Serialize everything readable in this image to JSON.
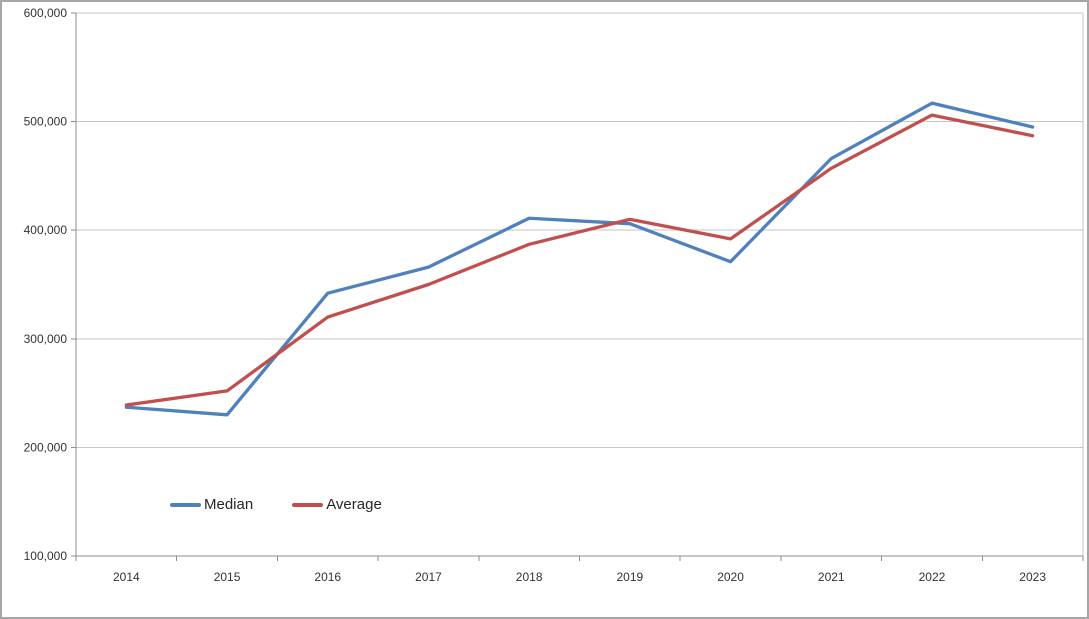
{
  "chart_data": {
    "type": "line",
    "title": "",
    "xlabel": "",
    "ylabel": "",
    "x": [
      "2014",
      "2015",
      "2016",
      "2017",
      "2018",
      "2019",
      "2020",
      "2021",
      "2022",
      "2023"
    ],
    "series": [
      {
        "name": "Median",
        "color": "#4F81BD",
        "values": [
          237000,
          230000,
          342000,
          366000,
          411000,
          406000,
          371000,
          466000,
          517000,
          495000
        ]
      },
      {
        "name": "Average",
        "color": "#C0504D",
        "values": [
          239000,
          252000,
          320000,
          350000,
          387000,
          410000,
          392000,
          457000,
          506000,
          487000
        ]
      }
    ],
    "ylim": [
      100000,
      600000
    ],
    "ytick_interval": 100000,
    "ytick_labels": [
      "100,000",
      "200,000",
      "300,000",
      "400,000",
      "500,000",
      "600,000"
    ],
    "grid": "horizontal",
    "legend_position": "inside-bottom-left",
    "colors": {
      "gridline": "#c6c6c6",
      "axis": "#8c8c8c",
      "plot_border": "#c6c6c6",
      "tick_text": "#333333",
      "canvas_border": "#a6a6a6"
    }
  }
}
